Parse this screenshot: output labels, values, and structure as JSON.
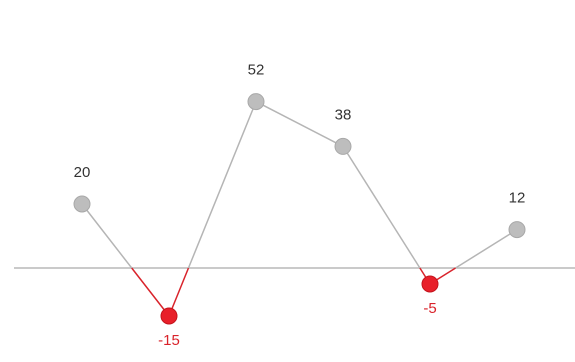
{
  "chart_data": {
    "type": "line",
    "x": [
      1,
      2,
      3,
      4,
      5,
      6
    ],
    "values": [
      20,
      -15,
      52,
      38,
      -5,
      12
    ],
    "data_labels": [
      "20",
      "-15",
      "52",
      "38",
      "-5",
      "12"
    ],
    "baseline": 0,
    "ylim": [
      -22,
      60
    ],
    "title": "",
    "xlabel": "",
    "ylabel": "",
    "grid": false,
    "legend": "none",
    "colors": {
      "positive_line": "#b5b5b5",
      "positive_marker": "#bdbdbd",
      "negative_line": "#d9232b",
      "negative_marker": "#e8202a",
      "axis": "#b8b8b8",
      "positive_label": "#333333",
      "negative_label": "#d9232b"
    }
  }
}
